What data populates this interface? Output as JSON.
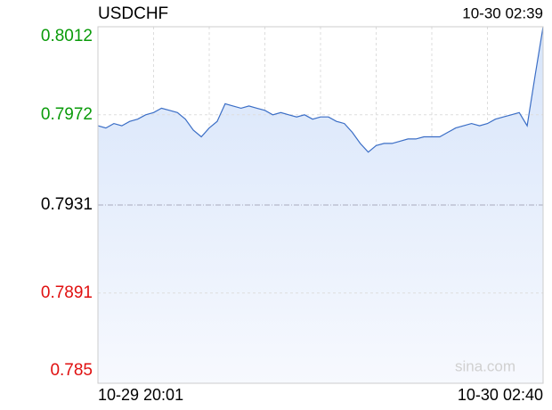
{
  "chart_data": {
    "type": "line",
    "title": "USDCHF",
    "timestamp": "10-30 02:39",
    "watermark": "sina.com",
    "categories": [
      "10-29 20:01",
      null,
      null,
      null,
      null,
      null,
      null,
      null,
      null,
      null,
      null,
      null,
      null,
      null,
      null,
      null,
      null,
      null,
      null,
      null,
      null,
      null,
      null,
      null,
      null,
      null,
      null,
      null,
      null,
      null,
      null,
      null,
      null,
      null,
      null,
      null,
      null,
      null,
      null,
      null,
      null,
      null,
      null,
      null,
      null,
      null,
      null,
      null,
      null,
      null,
      null,
      null,
      null,
      null,
      null,
      null,
      "10-30 02:40"
    ],
    "values": [
      0.7967,
      0.7966,
      0.7968,
      0.7967,
      0.7969,
      0.797,
      0.7972,
      0.7973,
      0.7975,
      0.7974,
      0.7973,
      0.797,
      0.7965,
      0.7962,
      0.7966,
      0.7969,
      0.7977,
      0.7976,
      0.7975,
      0.7976,
      0.7975,
      0.7974,
      0.7972,
      0.7973,
      0.7972,
      0.7971,
      0.7972,
      0.797,
      0.7971,
      0.7971,
      0.7969,
      0.7968,
      0.7964,
      0.7959,
      0.7955,
      0.7958,
      0.7959,
      0.7959,
      0.796,
      0.7961,
      0.7961,
      0.7962,
      0.7962,
      0.7962,
      0.7964,
      0.7966,
      0.7967,
      0.7968,
      0.7967,
      0.7968,
      0.797,
      0.7971,
      0.7972,
      0.7973,
      0.7967,
      0.799,
      0.8012
    ],
    "color": "#3b6ec6",
    "ylim": [
      0.785,
      0.8012
    ],
    "yticks": [
      0.8012,
      0.7972,
      0.7931,
      0.7891,
      0.785
    ],
    "up_color": "#0a9b0a",
    "down_color": "#e01010",
    "flat_color": "#000000",
    "grid": true
  }
}
